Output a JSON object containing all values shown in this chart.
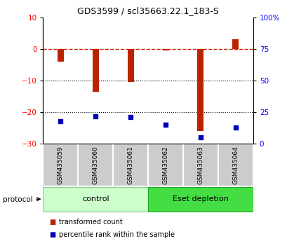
{
  "title": "GDS3599 / scl35663.22.1_183-S",
  "categories": [
    "GSM435059",
    "GSM435060",
    "GSM435061",
    "GSM435062",
    "GSM435063",
    "GSM435064"
  ],
  "red_bars": [
    -4.0,
    -13.5,
    -10.5,
    -0.5,
    -26.0,
    3.0
  ],
  "blue_squares_pct": [
    18,
    22,
    21,
    15,
    5,
    13
  ],
  "ylim_left": [
    -30,
    10
  ],
  "ylim_right": [
    0,
    100
  ],
  "yticks_left": [
    10,
    0,
    -10,
    -20,
    -30
  ],
  "yticks_right": [
    100,
    75,
    50,
    25,
    0
  ],
  "ytick_labels_right": [
    "100%",
    "75",
    "50",
    "25",
    "0"
  ],
  "dotted_lines": [
    -10,
    -20
  ],
  "bar_color": "#bb2200",
  "square_color": "#0000bb",
  "dashed_line_color": "#cc2200",
  "dotted_line_color": "#000000",
  "control_samples": [
    0,
    1,
    2
  ],
  "eset_samples": [
    3,
    4,
    5
  ],
  "control_label": "control",
  "eset_label": "Eset depletion",
  "control_color": "#ccffcc",
  "eset_color": "#44dd44",
  "sample_box_color": "#cccccc",
  "legend_red_label": "transformed count",
  "legend_blue_label": "percentile rank within the sample",
  "protocol_label": "protocol",
  "bar_width": 0.18
}
